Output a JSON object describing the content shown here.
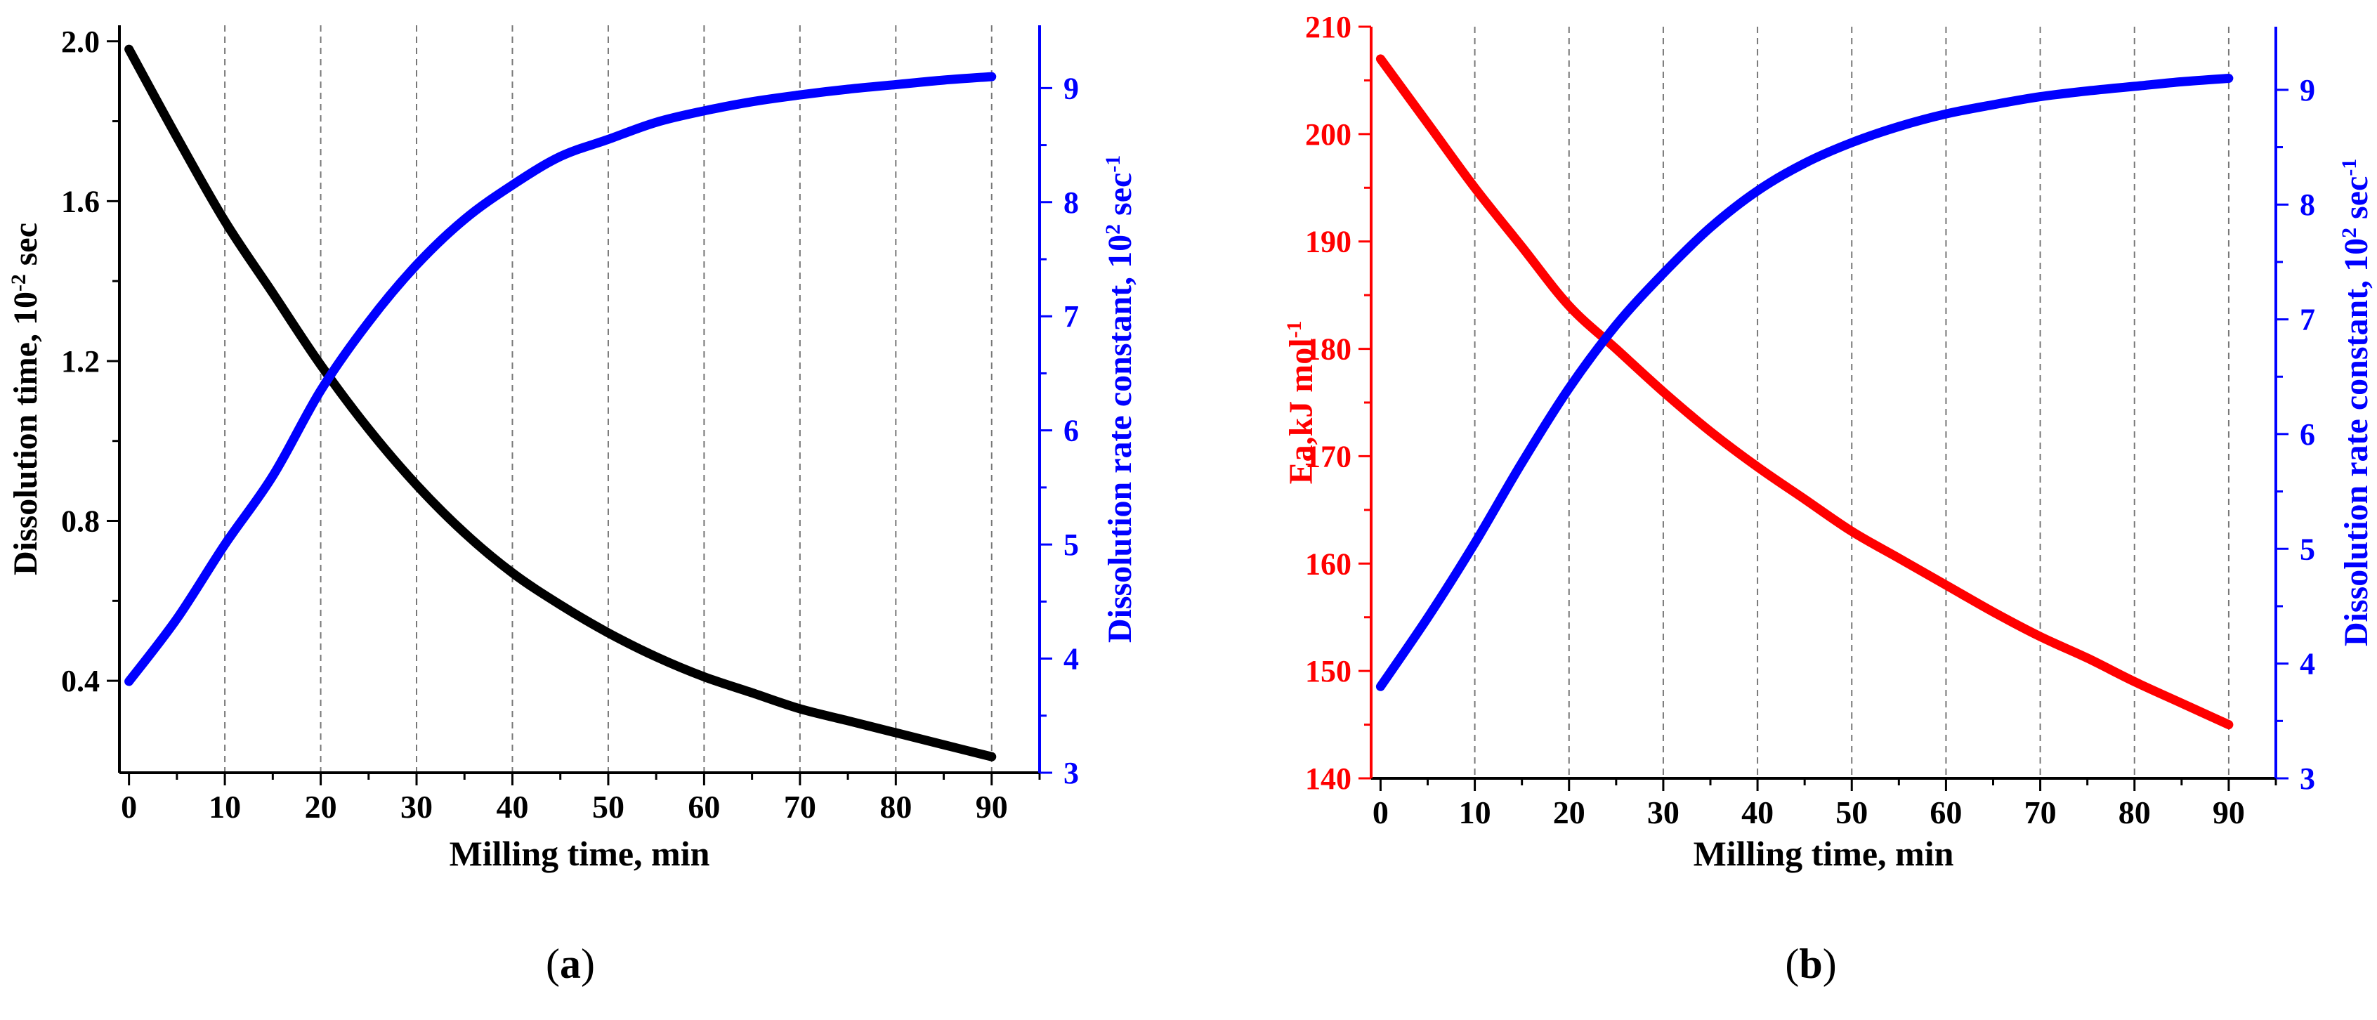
{
  "colors": {
    "black_series": "#000000",
    "blue_series": "#0000ff",
    "red_series": "#ff0000",
    "grid": "#777777"
  },
  "chart_data": [
    {
      "type": "line",
      "panel_label": "(a)",
      "xlabel": "Milling time, min",
      "xlim": [
        -1,
        95
      ],
      "xticks": [
        0,
        10,
        20,
        30,
        40,
        50,
        60,
        70,
        80,
        90
      ],
      "grid": "vertical",
      "left_axis": {
        "label_main": "Dissolution time, 10",
        "label_sup": "-2",
        "label_tail": " sec",
        "ylim": [
          0.17,
          2.04
        ],
        "ticks": [
          0.4,
          0.8,
          1.2,
          1.6,
          2.0
        ],
        "tick_labels": [
          "0.4",
          "0.8",
          "1.2",
          "1.6",
          "2.0"
        ],
        "color": "#000000"
      },
      "right_axis": {
        "label_main": "Dissolution rate constant, 10",
        "label_sup": "2",
        "label_tail": " sec",
        "label_sup2": "-1",
        "ylim": [
          3,
          9.55
        ],
        "ticks": [
          3,
          4,
          5,
          6,
          7,
          8,
          9
        ],
        "tick_labels": [
          "3",
          "4",
          "5",
          "6",
          "7",
          "8",
          "9"
        ],
        "color": "#0000ff"
      },
      "series": [
        {
          "name": "Dissolution time",
          "axis": "left",
          "color": "#000000",
          "x": [
            0,
            5,
            10,
            15,
            20,
            25,
            30,
            35,
            40,
            45,
            50,
            55,
            60,
            65,
            70,
            75,
            80,
            85,
            90
          ],
          "y": [
            1.98,
            1.76,
            1.55,
            1.37,
            1.19,
            1.03,
            0.89,
            0.77,
            0.67,
            0.59,
            0.52,
            0.46,
            0.41,
            0.37,
            0.33,
            0.3,
            0.27,
            0.24,
            0.21
          ]
        },
        {
          "name": "Dissolution rate constant",
          "axis": "right",
          "color": "#0000ff",
          "x": [
            0,
            5,
            10,
            15,
            20,
            25,
            30,
            35,
            40,
            45,
            50,
            55,
            60,
            65,
            70,
            75,
            80,
            85,
            90
          ],
          "y": [
            3.8,
            4.35,
            5.0,
            5.6,
            6.35,
            6.95,
            7.45,
            7.85,
            8.15,
            8.4,
            8.55,
            8.7,
            8.8,
            8.88,
            8.94,
            8.99,
            9.03,
            9.07,
            9.1
          ]
        }
      ]
    },
    {
      "type": "line",
      "panel_label": "(b)",
      "xlabel": "Milling time, min",
      "xlim": [
        -1,
        95
      ],
      "xticks": [
        0,
        10,
        20,
        30,
        40,
        50,
        60,
        70,
        80,
        90
      ],
      "grid": "vertical",
      "left_axis": {
        "label_main": "Ea,kJ mol",
        "label_sup": "-1",
        "label_tail": "",
        "ylim": [
          140,
          210
        ],
        "ticks": [
          140,
          150,
          160,
          170,
          180,
          190,
          200,
          210
        ],
        "tick_labels": [
          "140",
          "150",
          "160",
          "170",
          "180",
          "190",
          "200",
          "210"
        ],
        "color": "#ff0000"
      },
      "right_axis": {
        "label_main": "Dissolution rate constant, 10",
        "label_sup": "2",
        "label_tail": " sec",
        "label_sup2": "-1",
        "ylim": [
          3,
          9.55
        ],
        "ticks": [
          3,
          4,
          5,
          6,
          7,
          8,
          9
        ],
        "tick_labels": [
          "3",
          "4",
          "5",
          "6",
          "7",
          "8",
          "9"
        ],
        "color": "#0000ff"
      },
      "series": [
        {
          "name": "Ea",
          "axis": "left",
          "color": "#ff0000",
          "x": [
            0,
            5,
            10,
            15,
            20,
            25,
            30,
            35,
            40,
            45,
            50,
            55,
            60,
            65,
            70,
            75,
            80,
            85,
            90
          ],
          "y": [
            207,
            201,
            195,
            189.5,
            184,
            180,
            176,
            172.3,
            169,
            166,
            163,
            160.5,
            158,
            155.5,
            153.2,
            151.2,
            149,
            147,
            145
          ]
        },
        {
          "name": "Dissolution rate constant",
          "axis": "right",
          "color": "#0000ff",
          "x": [
            0,
            5,
            10,
            15,
            20,
            25,
            30,
            35,
            40,
            45,
            50,
            55,
            60,
            65,
            70,
            75,
            80,
            85,
            90
          ],
          "y": [
            3.8,
            4.4,
            5.05,
            5.75,
            6.4,
            6.95,
            7.4,
            7.8,
            8.12,
            8.36,
            8.54,
            8.68,
            8.79,
            8.87,
            8.94,
            8.99,
            9.03,
            9.07,
            9.1
          ]
        }
      ]
    }
  ]
}
